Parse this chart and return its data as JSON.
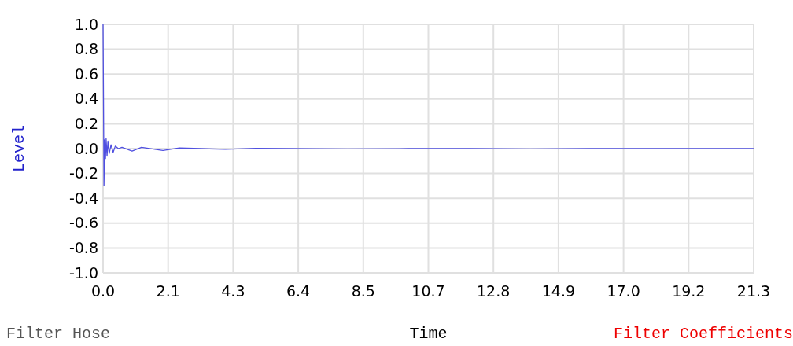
{
  "chart_data": {
    "type": "line",
    "xlabel": "Time",
    "ylabel": "Level",
    "annotations": [
      "Filter Hose",
      "Filter Coefficients"
    ],
    "xlim": [
      0,
      21.3
    ],
    "ylim": [
      -1,
      1
    ],
    "xticks": [
      {
        "value": 0,
        "label": "0.0"
      },
      {
        "value": 2.13,
        "label": "2.1"
      },
      {
        "value": 4.26,
        "label": "4.3"
      },
      {
        "value": 6.39,
        "label": "6.4"
      },
      {
        "value": 8.52,
        "label": "8.5"
      },
      {
        "value": 10.65,
        "label": "10.7"
      },
      {
        "value": 12.78,
        "label": "12.8"
      },
      {
        "value": 14.91,
        "label": "14.9"
      },
      {
        "value": 17.04,
        "label": "17.0"
      },
      {
        "value": 19.17,
        "label": "19.2"
      },
      {
        "value": 21.3,
        "label": "21.3"
      }
    ],
    "yticks": [
      {
        "value": 1,
        "label": "1.0"
      },
      {
        "value": 0.8,
        "label": "0.8"
      },
      {
        "value": 0.6,
        "label": "0.6"
      },
      {
        "value": 0.4,
        "label": "0.4"
      },
      {
        "value": 0.2,
        "label": "0.2"
      },
      {
        "value": 0,
        "label": "0.0"
      },
      {
        "value": -0.2,
        "label": "-0.2"
      },
      {
        "value": -0.4,
        "label": "-0.4"
      },
      {
        "value": -0.6,
        "label": "-0.6"
      },
      {
        "value": -0.8,
        "label": "-0.8"
      },
      {
        "value": -1,
        "label": "-1.0"
      }
    ],
    "grid": true,
    "marker": "none",
    "series": [
      {
        "color": "#5050e0",
        "x": [
          0,
          0.03,
          0.05,
          0.08,
          0.1,
          0.13,
          0.16,
          0.2,
          0.26,
          0.33,
          0.4,
          0.5,
          0.62,
          0.95,
          1.26,
          1.96,
          2.5,
          3.2,
          4.0,
          5.0,
          6.0,
          8.0,
          10.0,
          12.0,
          14.0,
          16.0,
          18.0,
          20.0,
          21.3
        ],
        "values": [
          1.0,
          -0.3,
          0.07,
          -0.08,
          0.08,
          -0.06,
          0.06,
          -0.04,
          0.03,
          -0.03,
          0.02,
          0.0,
          0.01,
          -0.02,
          0.01,
          -0.015,
          0.005,
          0.0,
          -0.005,
          0.002,
          0.0,
          -0.002,
          0.0,
          0.0,
          -0.002,
          0.0,
          0.0,
          0.0,
          0.0
        ]
      }
    ]
  }
}
